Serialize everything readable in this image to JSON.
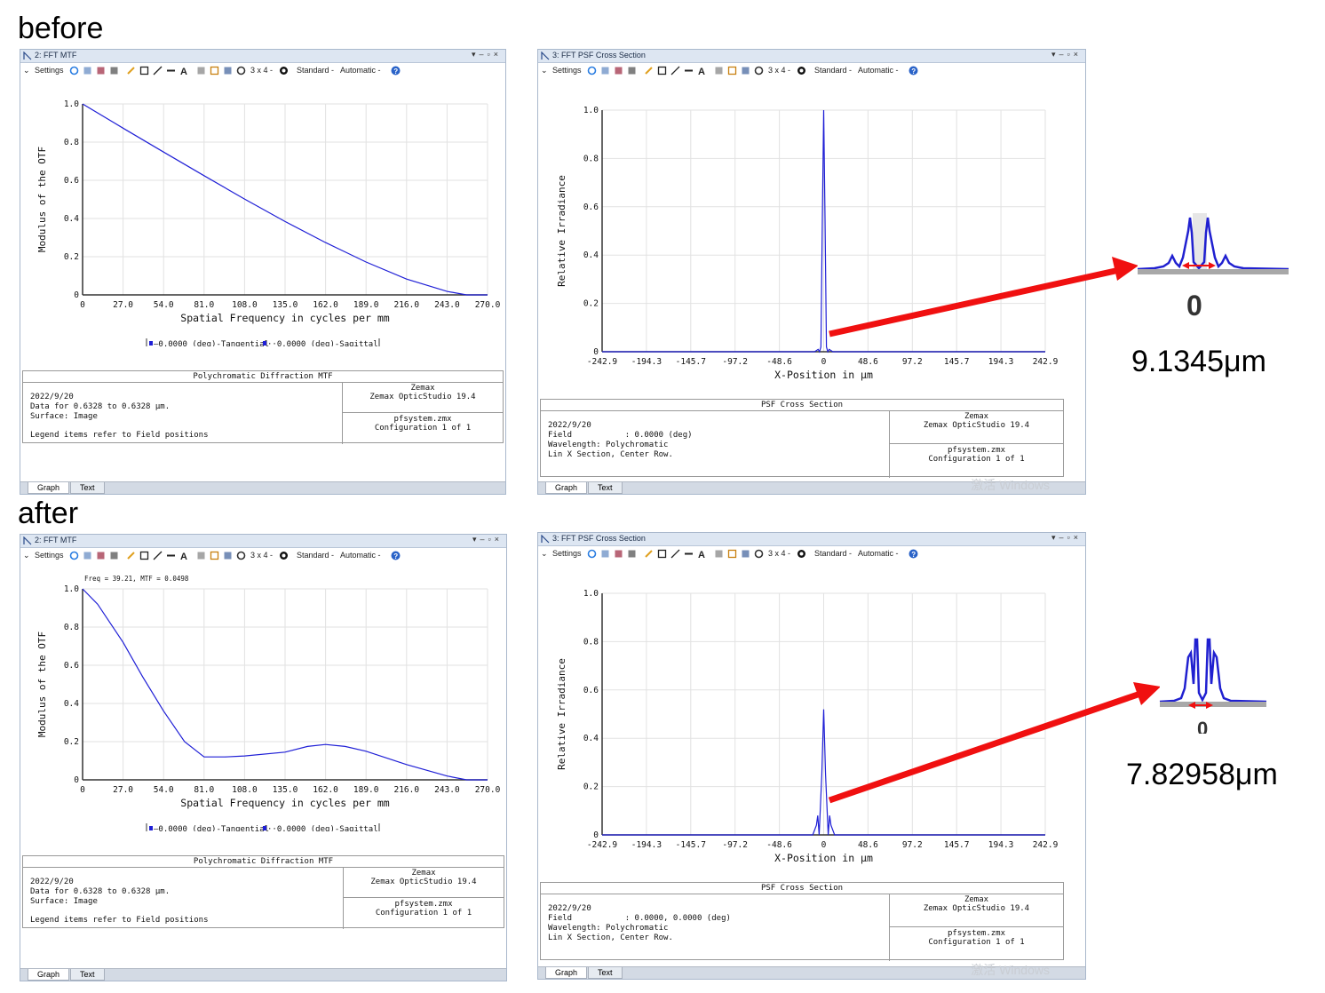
{
  "labels": {
    "before": "before",
    "after": "after"
  },
  "toolbar": {
    "settings": "Settings",
    "grid": "3 x 4 -",
    "standard": "Standard -",
    "automatic": "Automatic -"
  },
  "tabs": {
    "graph": "Graph",
    "text": "Text"
  },
  "mtf_window": {
    "title": "2: FFT MTF"
  },
  "psf_window": {
    "title": "3: FFT PSF Cross Section"
  },
  "mtf_info": {
    "title": "Polychromatic Diffraction MTF",
    "date": "2022/9/20",
    "data_line": "Data for 0.6328 to 0.6328 µm.",
    "surface": "Surface: Image",
    "legend_note": "Legend items refer to Field positions",
    "brand": "Zemax",
    "product": "Zemax OpticStudio 19.4",
    "file": "pfsystem.zmx",
    "config": "Configuration 1 of 1"
  },
  "psf_info_before": {
    "title": "PSF Cross Section",
    "date": "2022/9/20",
    "field": "Field           : 0.0000 (deg)",
    "wavelength": "Wavelength: Polychromatic",
    "section": "Lin X Section, Center Row.",
    "brand": "Zemax",
    "product": "Zemax OpticStudio 19.4",
    "file": "pfsystem.zmx",
    "config": "Configuration 1 of 1"
  },
  "psf_info_after": {
    "title": "PSF Cross Section",
    "date": "2022/9/20",
    "field": "Field           : 0.0000, 0.0000 (deg)",
    "wavelength": "Wavelength: Polychromatic",
    "section": "Lin X Section, Center Row.",
    "brand": "Zemax",
    "product": "Zemax OpticStudio 19.4",
    "file": "pfsystem.zmx",
    "config": "Configuration 1 of 1"
  },
  "mtf_legend": {
    "tangential": "0.0000 (deg)-Tangential",
    "sagittal": "0.0000 (deg)-Sagittal"
  },
  "mtf_cursor_readout": "Freq = 39.21, MTF = 0.0498",
  "watermark": "激活 Windows",
  "annotations": {
    "before_width": "9.1345μm",
    "after_width": "7.82958μm",
    "zero_label": "0"
  },
  "colors": {
    "curve": "#1f1fd6",
    "arrow": "#f01010",
    "grid": "#e2e2e2"
  },
  "chart_data": [
    {
      "id": "mtf_before",
      "type": "line",
      "title": "",
      "xlabel": "Spatial Frequency in cycles per mm",
      "ylabel": "Modulus of the OTF",
      "xlim": [
        0,
        270
      ],
      "ylim": [
        0,
        1
      ],
      "xticks": [
        "0",
        "27.0",
        "54.0",
        "81.0",
        "108.0",
        "135.0",
        "162.0",
        "189.0",
        "216.0",
        "243.0",
        "270.0"
      ],
      "yticks": [
        "0",
        "0.2",
        "0.4",
        "0.6",
        "0.8",
        "1.0"
      ],
      "x": [
        0,
        27,
        54,
        81,
        108,
        135,
        162,
        189,
        216,
        243,
        256,
        270
      ],
      "y": [
        1.0,
        0.873,
        0.748,
        0.624,
        0.502,
        0.384,
        0.274,
        0.172,
        0.083,
        0.018,
        0.0,
        0.0
      ],
      "grid": true
    },
    {
      "id": "psf_before",
      "type": "line",
      "title": "",
      "xlabel": "X-Position in µm",
      "ylabel": "Relative Irradiance",
      "xlim": [
        -242.9,
        242.9
      ],
      "ylim": [
        0,
        1
      ],
      "xticks": [
        "-242.9",
        "-194.3",
        "-145.7",
        "-97.2",
        "-48.6",
        "0",
        "48.6",
        "97.2",
        "145.7",
        "194.3",
        "242.9"
      ],
      "yticks": [
        "0",
        "0.2",
        "0.4",
        "0.6",
        "0.8",
        "1.0"
      ],
      "x": [
        -242.9,
        -10,
        -6,
        -4.6,
        -3,
        -1.5,
        0,
        1.5,
        3,
        4.6,
        6,
        10,
        242.9
      ],
      "y": [
        0.0,
        0.0,
        0.01,
        0.0,
        0.02,
        0.55,
        1.0,
        0.55,
        0.02,
        0.0,
        0.01,
        0.0,
        0.0
      ],
      "grid": true
    },
    {
      "id": "mtf_after",
      "type": "line",
      "title": "",
      "xlabel": "Spatial Frequency in cycles per mm",
      "ylabel": "Modulus of the OTF",
      "xlim": [
        0,
        270
      ],
      "ylim": [
        0,
        1
      ],
      "xticks": [
        "0",
        "27.0",
        "54.0",
        "81.0",
        "108.0",
        "135.0",
        "162.0",
        "189.0",
        "216.0",
        "243.0",
        "270.0"
      ],
      "yticks": [
        "0",
        "0.2",
        "0.4",
        "0.6",
        "0.8",
        "1.0"
      ],
      "x": [
        0,
        10,
        27,
        40,
        54,
        68,
        81,
        95,
        108,
        135,
        150,
        162,
        175,
        189,
        216,
        243,
        256,
        270
      ],
      "y": [
        1.0,
        0.92,
        0.72,
        0.54,
        0.36,
        0.2,
        0.12,
        0.12,
        0.125,
        0.145,
        0.175,
        0.185,
        0.175,
        0.15,
        0.08,
        0.02,
        0.0,
        0.0
      ],
      "grid": true
    },
    {
      "id": "psf_after",
      "type": "line",
      "title": "",
      "xlabel": "X-Position in µm",
      "ylabel": "Relative Irradiance",
      "xlim": [
        -242.9,
        242.9
      ],
      "ylim": [
        0,
        1
      ],
      "xticks": [
        "-242.9",
        "-194.3",
        "-145.7",
        "-97.2",
        "-48.6",
        "0",
        "48.6",
        "97.2",
        "145.7",
        "194.3",
        "242.9"
      ],
      "yticks": [
        "0",
        "0.2",
        "0.4",
        "0.6",
        "0.8",
        "1.0"
      ],
      "x": [
        -242.9,
        -12,
        -8,
        -6.5,
        -5,
        -2,
        0,
        2,
        5,
        6.5,
        8,
        12,
        242.9
      ],
      "y": [
        0.0,
        0.0,
        0.04,
        0.08,
        0.0,
        0.25,
        0.52,
        0.25,
        0.0,
        0.08,
        0.04,
        0.0,
        0.0
      ],
      "grid": true
    }
  ]
}
